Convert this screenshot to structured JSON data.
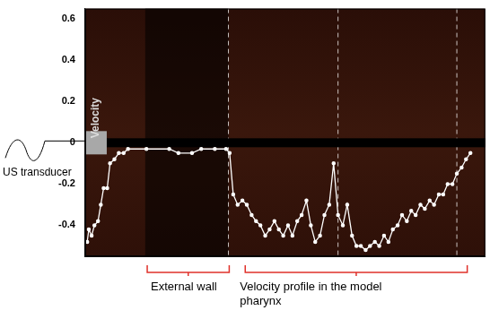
{
  "chart_data": {
    "type": "line",
    "ylabel": "Velocity",
    "annotations": [
      "US transducer",
      "External wall",
      "Velocity profile in the model pharynx"
    ],
    "x": [
      0.5,
      0.9,
      1.6,
      2.3,
      3.2,
      3.9,
      4.6,
      5.5,
      6.2,
      7.3,
      8.4,
      9.6,
      10.7,
      15.3,
      21.0,
      23.3,
      26.7,
      29.0,
      32.4,
      35.2,
      36.1,
      37.0,
      38.1,
      39.3,
      40.4,
      41.6,
      42.7,
      43.8,
      45.0,
      46.1,
      47.3,
      48.4,
      49.5,
      50.7,
      51.8,
      53.0,
      54.1,
      55.3,
      56.4,
      57.5,
      58.7,
      59.8,
      61.0,
      62.1,
      63.2,
      64.4,
      65.5,
      66.7,
      67.8,
      68.9,
      70.1,
      71.2,
      72.4,
      73.5,
      74.7,
      75.8,
      76.9,
      78.1,
      79.2,
      80.4,
      81.5,
      82.6,
      83.8,
      84.9,
      86.1,
      87.2,
      88.4,
      89.5,
      90.6,
      91.8,
      92.9,
      94.1,
      95.2,
      96.3
    ],
    "values": [
      -0.48,
      -0.42,
      -0.45,
      -0.4,
      -0.38,
      -0.3,
      -0.22,
      -0.22,
      -0.1,
      -0.08,
      -0.05,
      -0.05,
      -0.03,
      -0.03,
      -0.03,
      -0.05,
      -0.05,
      -0.03,
      -0.03,
      -0.03,
      -0.05,
      -0.25,
      -0.3,
      -0.28,
      -0.3,
      -0.35,
      -0.38,
      -0.4,
      -0.45,
      -0.42,
      -0.38,
      -0.42,
      -0.45,
      -0.4,
      -0.45,
      -0.38,
      -0.35,
      -0.28,
      -0.4,
      -0.48,
      -0.45,
      -0.35,
      -0.3,
      -0.1,
      -0.35,
      -0.4,
      -0.3,
      -0.45,
      -0.5,
      -0.5,
      -0.52,
      -0.5,
      -0.48,
      -0.5,
      -0.45,
      -0.48,
      -0.42,
      -0.4,
      -0.35,
      -0.38,
      -0.33,
      -0.35,
      -0.3,
      -0.32,
      -0.28,
      -0.3,
      -0.25,
      -0.25,
      -0.2,
      -0.2,
      -0.15,
      -0.12,
      -0.08,
      -0.05
    ],
    "color": "#ffffff",
    "marker": "circle",
    "line_style": "solid",
    "vertical_lines": [
      35.8,
      63.2,
      92.9
    ],
    "xlim": [
      0,
      100
    ],
    "ylim": [
      -0.55,
      0.65
    ],
    "yticks": [
      -0.4,
      -0.2,
      0,
      0.2,
      0.4,
      0.6
    ],
    "grid": false,
    "tick_labels": "y"
  }
}
